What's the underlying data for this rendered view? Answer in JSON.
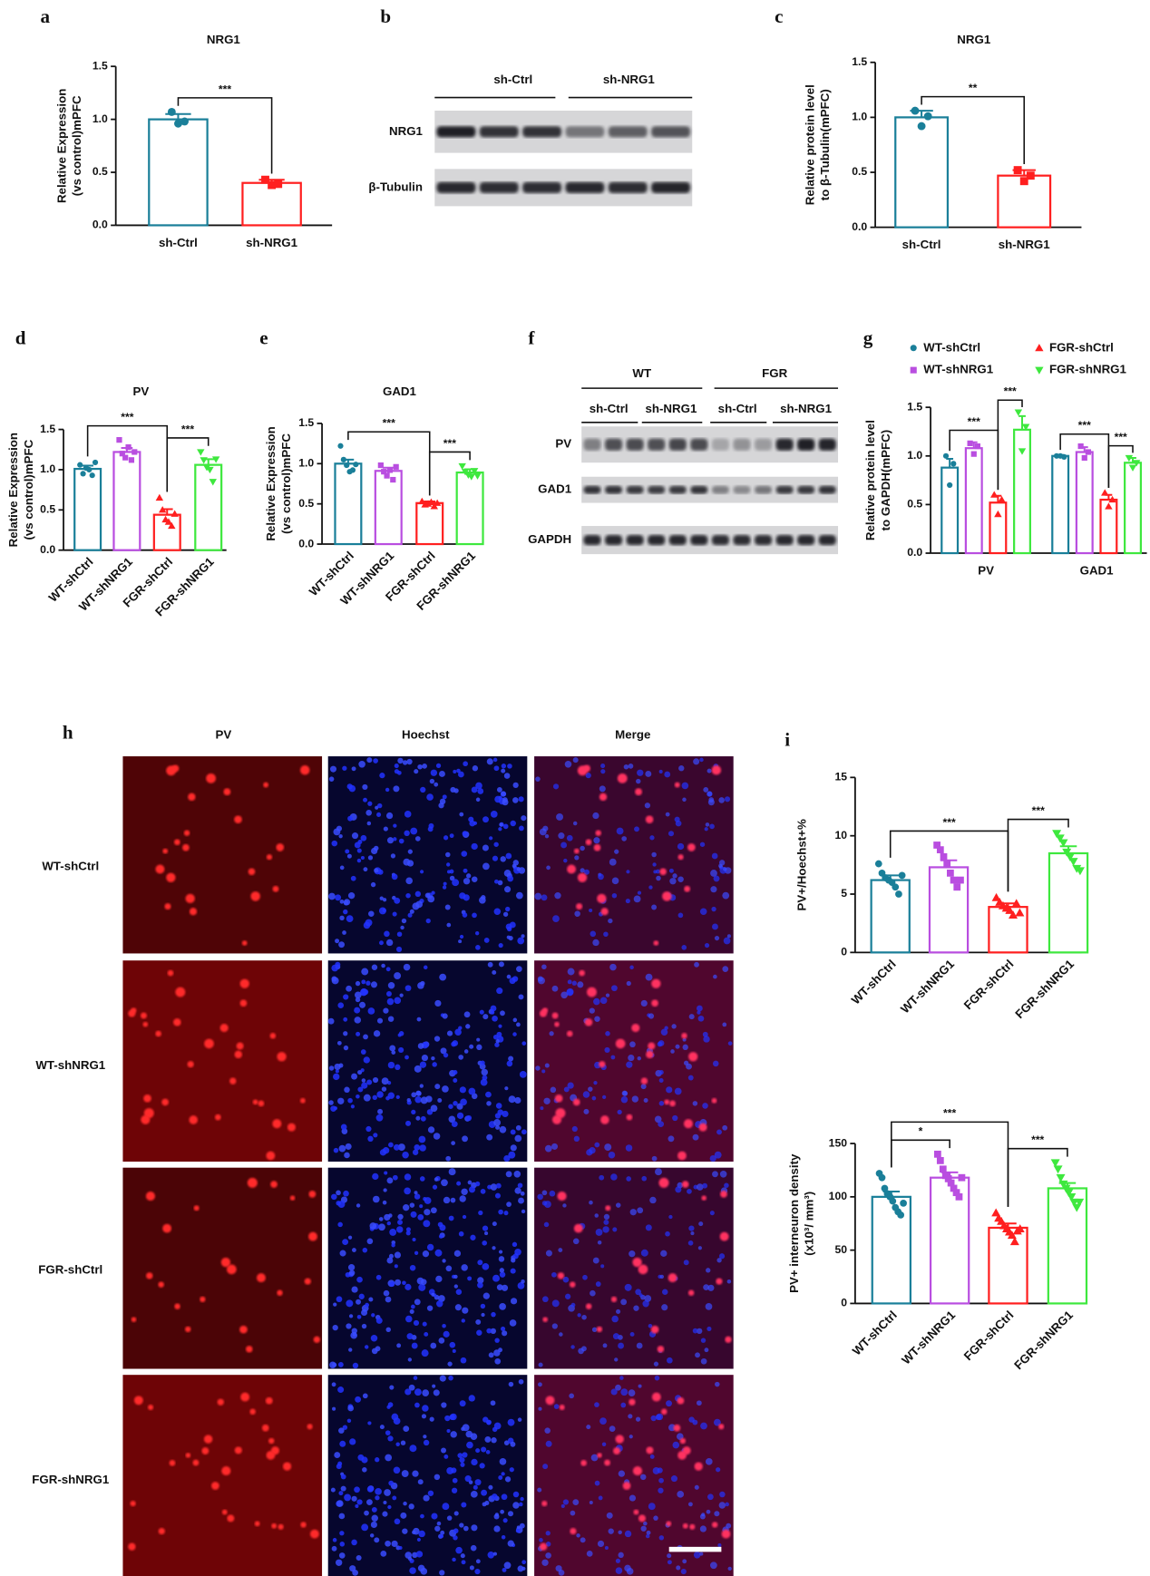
{
  "panel_labels": [
    "a",
    "b",
    "c",
    "d",
    "e",
    "f",
    "g",
    "h",
    "i"
  ],
  "chart_data": [
    {
      "type": "bar",
      "title": "NRG1",
      "ylabel": [
        "Relative Expression",
        "(vs control)mPFC"
      ],
      "categories": [
        "sh-Ctrl",
        "sh-NRG1"
      ],
      "values": [
        1.0,
        0.4
      ],
      "errors": [
        0.05,
        0.03
      ],
      "points": [
        [
          1.07,
          0.96,
          0.98
        ],
        [
          0.43,
          0.38,
          0.39
        ]
      ],
      "colors": [
        "#1a7f99",
        "#ff1f1f"
      ],
      "markers": [
        "circle",
        "square"
      ],
      "ylim": [
        0,
        1.5
      ],
      "yticks": [
        {
          "value": 0,
          "label": "0.0"
        },
        0.5,
        {
          "value": 1,
          "label": "1.0"
        },
        1.5
      ],
      "significance": [
        {
          "between": [
            "sh-Ctrl",
            "sh-NRG1"
          ],
          "label": "***"
        }
      ]
    },
    {
      "type": "bar",
      "title": "NRG1",
      "ylabel": [
        "Relative protein level",
        "to β-Tubulin(mPFC)"
      ],
      "categories": [
        "sh-Ctrl",
        "sh-NRG1"
      ],
      "values": [
        1.0,
        0.47
      ],
      "errors": [
        0.06,
        0.05
      ],
      "points": [
        [
          1.06,
          0.92,
          1.01
        ],
        [
          0.52,
          0.42,
          0.47
        ]
      ],
      "colors": [
        "#1a7f99",
        "#ff1f1f"
      ],
      "markers": [
        "circle",
        "square"
      ],
      "ylim": [
        0,
        1.5
      ],
      "yticks": [
        {
          "value": 0,
          "label": "0.0"
        },
        0.5,
        {
          "value": 1,
          "label": "1.0"
        },
        1.5
      ],
      "significance": [
        {
          "between": [
            "sh-Ctrl",
            "sh-NRG1"
          ],
          "label": "**"
        }
      ]
    },
    {
      "type": "bar",
      "title": "PV",
      "ylabel": [
        "Relative Expression",
        "(vs control)mPFC"
      ],
      "categories": [
        "WT-shCtrl",
        "WT-shNRG1",
        "FGR-shCtrl",
        "FGR-shNRG1"
      ],
      "values": [
        1.01,
        1.22,
        0.44,
        1.06
      ],
      "errors": [
        0.04,
        0.05,
        0.07,
        0.07
      ],
      "points": [
        [
          1.06,
          0.95,
          1.02,
          1.0,
          0.93,
          1.09
        ],
        [
          1.37,
          1.2,
          1.15,
          1.28,
          1.12,
          1.22
        ],
        [
          0.65,
          0.5,
          0.38,
          0.35,
          0.3,
          0.45
        ],
        [
          1.22,
          1.12,
          1.03,
          1.0,
          0.85,
          1.13
        ]
      ],
      "colors": [
        "#1a7f99",
        "#b94ee0",
        "#ff1f1f",
        "#3ee83e"
      ],
      "markers": [
        "circle",
        "square",
        "triangle-up",
        "triangle-down"
      ],
      "ylim": [
        0,
        1.5
      ],
      "yticks": [
        {
          "value": 0,
          "label": "0.0"
        },
        0.5,
        {
          "value": 1,
          "label": "1.0"
        },
        1.5
      ],
      "significance": [
        {
          "between": [
            "WT-shCtrl",
            "FGR-shCtrl"
          ],
          "label": "***"
        },
        {
          "between": [
            "FGR-shCtrl",
            "FGR-shNRG1"
          ],
          "label": "***"
        }
      ]
    },
    {
      "type": "bar",
      "title": "GAD1",
      "ylabel": [
        "Relative Expression",
        "(vs control)mPFC"
      ],
      "categories": [
        "WT-shCtrl",
        "WT-shNRG1",
        "FGR-shCtrl",
        "FGR-shNRG1"
      ],
      "values": [
        1.0,
        0.91,
        0.51,
        0.89
      ],
      "errors": [
        0.05,
        0.04,
        0.02,
        0.04
      ],
      "points": [
        [
          1.22,
          1.05,
          0.98,
          0.9,
          0.92,
          0.99
        ],
        [
          0.98,
          0.9,
          0.85,
          0.92,
          0.8,
          0.96
        ],
        [
          0.53,
          0.49,
          0.5,
          0.52,
          0.47,
          0.51
        ],
        [
          0.97,
          0.9,
          0.86,
          0.84,
          0.91,
          0.85
        ]
      ],
      "colors": [
        "#1a7f99",
        "#b94ee0",
        "#ff1f1f",
        "#3ee83e"
      ],
      "markers": [
        "circle",
        "square",
        "triangle-up",
        "triangle-down"
      ],
      "ylim": [
        0,
        1.5
      ],
      "yticks": [
        {
          "value": 0,
          "label": "0.0"
        },
        0.5,
        {
          "value": 1,
          "label": "1.0"
        },
        1.5
      ],
      "significance": [
        {
          "between": [
            "WT-shCtrl",
            "FGR-shCtrl"
          ],
          "label": "***"
        },
        {
          "between": [
            "FGR-shCtrl",
            "FGR-shNRG1"
          ],
          "label": "***"
        }
      ]
    },
    {
      "type": "grouped_bar",
      "ylabel": [
        "Relative protein level",
        "to GAPDH(mPFC)"
      ],
      "categories": [
        "PV",
        "GAD1"
      ],
      "series": [
        {
          "name": "WT-shCtrl",
          "color": "#1a7f99",
          "marker": "circle",
          "values": [
            0.88,
            1.0
          ],
          "errors": [
            0.09,
            0.01
          ],
          "points": [
            [
              1.0,
              0.7,
              0.92
            ],
            [
              1.0,
              1.0,
              0.99
            ]
          ]
        },
        {
          "name": "WT-shNRG1",
          "color": "#b94ee0",
          "marker": "square",
          "values": [
            1.08,
            1.04
          ],
          "errors": [
            0.06,
            0.05
          ],
          "points": [
            [
              1.13,
              1.02,
              1.1
            ],
            [
              1.1,
              0.98,
              1.04
            ]
          ]
        },
        {
          "name": "FGR-shCtrl",
          "color": "#ff1f1f",
          "marker": "triangle-up",
          "values": [
            0.52,
            0.55
          ],
          "errors": [
            0.07,
            0.05
          ],
          "points": [
            [
              0.6,
              0.4,
              0.55
            ],
            [
              0.62,
              0.48,
              0.55
            ]
          ]
        },
        {
          "name": "FGR-shNRG1",
          "color": "#3ee83e",
          "marker": "triangle-down",
          "values": [
            1.27,
            0.93
          ],
          "errors": [
            0.14,
            0.05
          ],
          "points": [
            [
              1.45,
              1.05,
              1.3
            ],
            [
              0.98,
              0.88,
              0.93
            ]
          ]
        }
      ],
      "legend": "top",
      "ylim": [
        0,
        1.5
      ],
      "yticks": [
        {
          "value": 0,
          "label": "0.0"
        },
        0.5,
        {
          "value": 1,
          "label": "1.0"
        },
        1.5
      ],
      "significance": [
        {
          "category": "PV",
          "between": [
            "WT-shCtrl",
            "FGR-shCtrl"
          ],
          "label": "***"
        },
        {
          "category": "PV",
          "between": [
            "FGR-shCtrl",
            "FGR-shNRG1"
          ],
          "label": "***"
        },
        {
          "category": "GAD1",
          "between": [
            "WT-shCtrl",
            "FGR-shCtrl"
          ],
          "label": "***"
        },
        {
          "category": "GAD1",
          "between": [
            "FGR-shCtrl",
            "FGR-shNRG1"
          ],
          "label": "***"
        }
      ]
    },
    {
      "type": "bar",
      "ylabel": [
        "PV+/Hoechst+%"
      ],
      "categories": [
        "WT-shCtrl",
        "WT-shNRG1",
        "FGR-shCtrl",
        "FGR-shNRG1"
      ],
      "values": [
        6.2,
        7.3,
        3.9,
        8.5
      ],
      "errors": [
        0.4,
        0.6,
        0.3,
        0.6
      ],
      "points": [
        [
          7.6,
          6.8,
          6.4,
          6.2,
          6.0,
          5.6,
          5.0,
          6.6
        ],
        [
          9.2,
          8.8,
          8.2,
          7.6,
          6.8,
          6.2,
          5.6,
          6.2
        ],
        [
          4.7,
          4.3,
          4.0,
          3.8,
          3.6,
          3.2,
          4.2,
          3.4
        ],
        [
          10.2,
          9.8,
          9.4,
          8.6,
          8.2,
          7.8,
          7.2,
          7.0
        ]
      ],
      "colors": [
        "#1a7f99",
        "#b94ee0",
        "#ff1f1f",
        "#3ee83e"
      ],
      "markers": [
        "circle",
        "square",
        "triangle-up",
        "triangle-down"
      ],
      "ylim": [
        0,
        15
      ],
      "yticks": [
        0,
        5,
        10,
        15
      ],
      "significance": [
        {
          "between": [
            "WT-shCtrl",
            "FGR-shCtrl"
          ],
          "label": "***"
        },
        {
          "between": [
            "FGR-shCtrl",
            "FGR-shNRG1"
          ],
          "label": "***"
        }
      ]
    },
    {
      "type": "bar",
      "ylabel": [
        "PV+ interneuron density",
        "(x10³/ mm³)"
      ],
      "categories": [
        "WT-shCtrl",
        "WT-shNRG1",
        "FGR-shCtrl",
        "FGR-shNRG1"
      ],
      "values": [
        100,
        118,
        71,
        108
      ],
      "errors": [
        5,
        5,
        4,
        5
      ],
      "points": [
        [
          122,
          118,
          108,
          103,
          100,
          96,
          90,
          86,
          83,
          94
        ],
        [
          140,
          134,
          126,
          120,
          117,
          113,
          108,
          104,
          100,
          118
        ],
        [
          85,
          80,
          77,
          73,
          70,
          67,
          64,
          58,
          68,
          70
        ],
        [
          132,
          126,
          118,
          112,
          108,
          104,
          100,
          95,
          90,
          95
        ]
      ],
      "colors": [
        "#1a7f99",
        "#b94ee0",
        "#ff1f1f",
        "#3ee83e"
      ],
      "markers": [
        "circle",
        "square",
        "triangle-up",
        "triangle-down"
      ],
      "ylim": [
        0,
        150
      ],
      "yticks": [
        0,
        50,
        100,
        150
      ],
      "significance": [
        {
          "between": [
            "WT-shCtrl",
            "WT-shNRG1"
          ],
          "label": "*"
        },
        {
          "between": [
            "WT-shCtrl",
            "FGR-shCtrl"
          ],
          "label": "***"
        },
        {
          "between": [
            "FGR-shCtrl",
            "FGR-shNRG1"
          ],
          "label": "***"
        }
      ]
    }
  ],
  "blot_b": {
    "groups": [
      "sh-Ctrl",
      "sh-NRG1"
    ],
    "rows": [
      "NRG1",
      "β-Tubulin"
    ]
  },
  "blot_f": {
    "groups": [
      "WT",
      "FGR"
    ],
    "lanes": [
      "sh-Ctrl",
      "sh-NRG1",
      "sh-Ctrl",
      "sh-NRG1"
    ],
    "rows": [
      "PV",
      "GAD1",
      "GAPDH"
    ]
  },
  "micrographs": {
    "columns": [
      "PV",
      "Hoechst",
      "Merge"
    ],
    "rows": [
      "WT-shCtrl",
      "WT-shNRG1",
      "FGR-shCtrl",
      "FGR-shNRG1"
    ]
  }
}
